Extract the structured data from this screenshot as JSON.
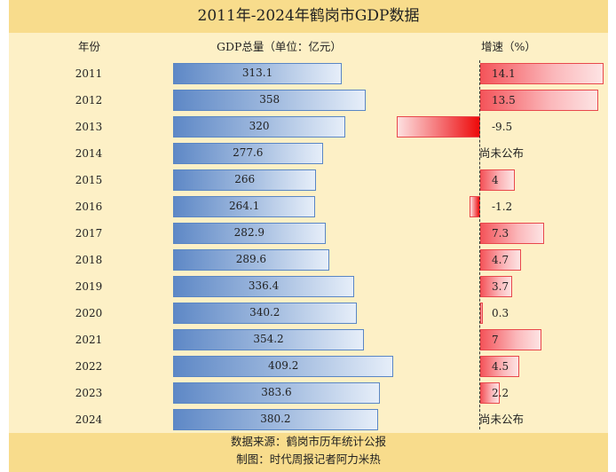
{
  "title": "2011年-2024年鹤岗市GDP数据",
  "headers": {
    "year": "年份",
    "gdp": "GDP总量（单位：亿元）",
    "growth": "增速（%）"
  },
  "footer": {
    "source": "数据来源：鹤岗市历年统计公报",
    "credit": "制图：时代周报记者阿力米热"
  },
  "not_published": "尚未公布",
  "colors": {
    "title_band": "#f8dc8c",
    "background": "#fdf0c6",
    "gdp_bar": "#5e88c6",
    "growth_bar": "#f4545a"
  },
  "chart_data": {
    "type": "bar",
    "title": "2011年-2024年鹤岗市GDP数据",
    "categories": [
      "2011",
      "2012",
      "2013",
      "2014",
      "2015",
      "2016",
      "2017",
      "2018",
      "2019",
      "2020",
      "2021",
      "2022",
      "2023",
      "2024"
    ],
    "series": [
      {
        "name": "GDP总量（单位：亿元）",
        "values": [
          313.1,
          358,
          320,
          277.6,
          266,
          264.1,
          282.9,
          289.6,
          336.4,
          340.2,
          354.2,
          409.2,
          383.6,
          380.2
        ]
      },
      {
        "name": "增速（%）",
        "values": [
          14.1,
          13.5,
          -9.5,
          null,
          4,
          -1.2,
          7.3,
          4.7,
          3.7,
          0.3,
          7,
          4.5,
          2.2,
          null
        ]
      }
    ],
    "orientation": "horizontal",
    "grid": false
  }
}
